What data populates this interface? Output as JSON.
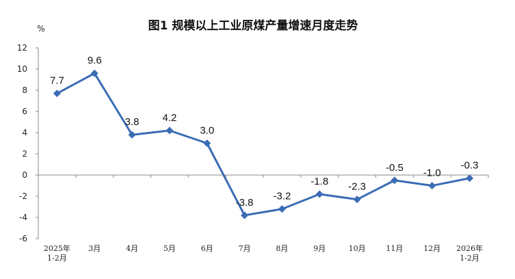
{
  "chart_data": {
    "type": "line",
    "title": "图1  规模以上工业原煤产量增速月度走势",
    "unit": "%",
    "ylim": [
      -6,
      12
    ],
    "yticks": [
      12,
      10,
      8,
      6,
      4,
      2,
      0,
      -2,
      -4,
      -6
    ],
    "categories": [
      [
        "2025年",
        "1-2月"
      ],
      [
        "3月"
      ],
      [
        "4月"
      ],
      [
        "5月"
      ],
      [
        "6月"
      ],
      [
        "7月"
      ],
      [
        "8月"
      ],
      [
        "9月"
      ],
      [
        "10月"
      ],
      [
        "11月"
      ],
      [
        "12月"
      ],
      [
        "2026年",
        "1-2月"
      ]
    ],
    "series": [
      {
        "values": [
          7.7,
          9.6,
          3.8,
          4.2,
          3.0,
          -3.8,
          -3.2,
          -1.8,
          -2.3,
          -0.5,
          -1.0,
          -0.3
        ],
        "labels": [
          "7.7",
          "9.6",
          "3.8",
          "4.2",
          "3.0",
          "-3.8",
          "-3.2",
          "-1.8",
          "-2.3",
          "-0.5",
          "-1.0",
          "-0.3"
        ],
        "color": "#3a6cb4"
      }
    ],
    "grid": false,
    "legend": "none"
  }
}
